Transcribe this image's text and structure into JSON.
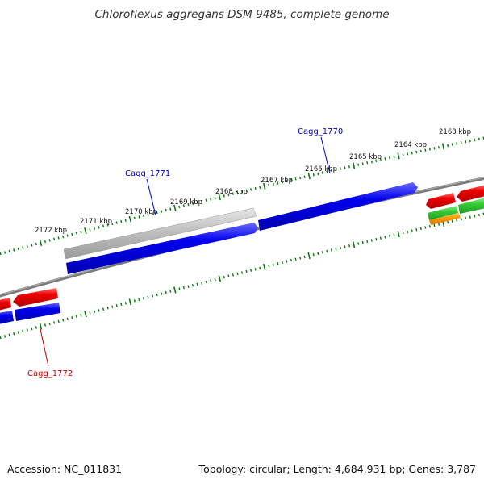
{
  "title": "Chloroflexus aggregans DSM 9485, complete genome",
  "tick_labels": [
    "2163 kbp",
    "2164 kbp",
    "2165 kbp",
    "2166 kbp",
    "2167 kbp",
    "2168 kbp",
    "2169 kbp",
    "2170 kbp",
    "2171 kbp",
    "2172 kbp"
  ],
  "gene_labels": {
    "cagg_1770": "Cagg_1770",
    "cagg_1771": "Cagg_1771",
    "cagg_1772": "Cagg_1772"
  },
  "colors": {
    "forward_cds": "#0000ee",
    "reverse_cds": "#ee0000",
    "gray_feature": "#b8b8b8",
    "green_feature": "#33cc33",
    "orange_feature": "#ff9900",
    "ticks": "#0a7a0a",
    "backbone": "#808080",
    "label_blue": "#0000cc",
    "label_red": "#cc0000"
  },
  "footer": {
    "accession": "Accession: NC_011831",
    "details": "Topology: circular; Length: 4,684,931 bp; Genes: 3,787"
  }
}
